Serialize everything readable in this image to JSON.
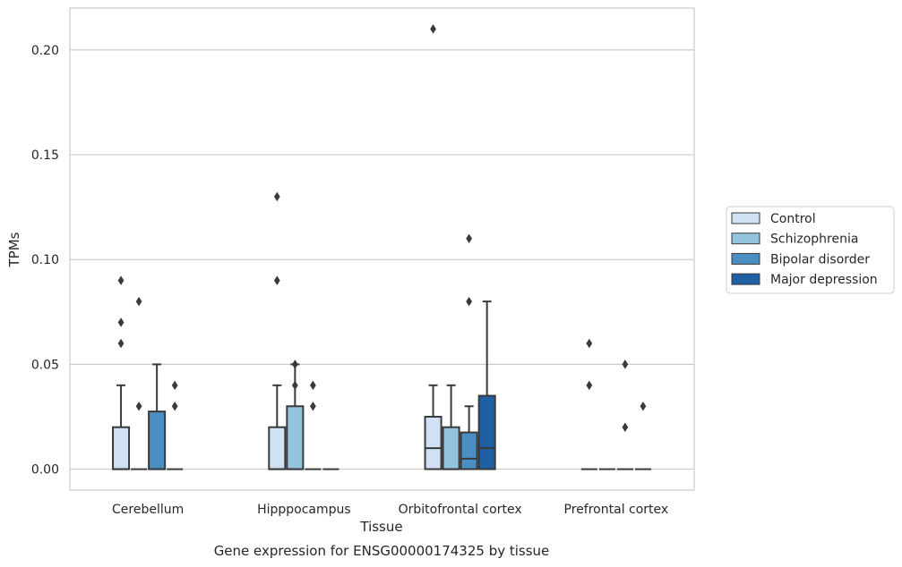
{
  "caption": "Gene expression for ENSG00000174325 by tissue",
  "chart_data": {
    "type": "box",
    "xlabel": "Tissue",
    "ylabel": "TPMs",
    "ylim": [
      -0.01,
      0.22
    ],
    "yticks": [
      "0.00",
      "0.05",
      "0.10",
      "0.15",
      "0.20"
    ],
    "grid": "horizontal",
    "legend_position": "right",
    "categories": [
      "Cerebellum",
      "Hipppocampus",
      "Orbitofrontal cortex",
      "Prefrontal cortex"
    ],
    "series": [
      {
        "name": "Control",
        "color": "#cfe1f2",
        "boxes": [
          {
            "q1": 0,
            "median": 0,
            "q3": 0.02,
            "whisker_low": 0,
            "whisker_high": 0.04,
            "outliers": [
              0.06,
              0.07,
              0.09
            ]
          },
          {
            "q1": 0,
            "median": 0,
            "q3": 0.02,
            "whisker_low": 0,
            "whisker_high": 0.04,
            "outliers": [
              0.09,
              0.13
            ]
          },
          {
            "q1": 0,
            "median": 0.01,
            "q3": 0.025,
            "whisker_low": 0,
            "whisker_high": 0.04,
            "outliers": [
              0.21
            ]
          },
          {
            "q1": 0,
            "median": 0,
            "q3": 0,
            "whisker_low": 0,
            "whisker_high": 0,
            "outliers": [
              0.04,
              0.06
            ]
          }
        ]
      },
      {
        "name": "Schizophrenia",
        "color": "#93c4de",
        "boxes": [
          {
            "q1": 0,
            "median": 0,
            "q3": 0,
            "whisker_low": 0,
            "whisker_high": 0,
            "outliers": [
              0.03,
              0.08
            ]
          },
          {
            "q1": 0,
            "median": 0,
            "q3": 0.03,
            "whisker_low": 0,
            "whisker_high": 0.05,
            "outliers": [
              0.04,
              0.05
            ]
          },
          {
            "q1": 0,
            "median": 0,
            "q3": 0.02,
            "whisker_low": 0,
            "whisker_high": 0.04,
            "outliers": []
          },
          {
            "q1": 0,
            "median": 0,
            "q3": 0,
            "whisker_low": 0,
            "whisker_high": 0,
            "outliers": []
          }
        ]
      },
      {
        "name": "Bipolar disorder",
        "color": "#4a8fc1",
        "boxes": [
          {
            "q1": 0,
            "median": 0,
            "q3": 0.0275,
            "whisker_low": 0,
            "whisker_high": 0.05,
            "outliers": []
          },
          {
            "q1": 0,
            "median": 0,
            "q3": 0,
            "whisker_low": 0,
            "whisker_high": 0,
            "outliers": [
              0.03,
              0.04
            ]
          },
          {
            "q1": 0,
            "median": 0.005,
            "q3": 0.0175,
            "whisker_low": 0,
            "whisker_high": 0.03,
            "outliers": [
              0.08,
              0.11
            ]
          },
          {
            "q1": 0,
            "median": 0,
            "q3": 0,
            "whisker_low": 0,
            "whisker_high": 0,
            "outliers": [
              0.02,
              0.05
            ]
          }
        ]
      },
      {
        "name": "Major depression",
        "color": "#1f5fa3",
        "boxes": [
          {
            "q1": 0,
            "median": 0,
            "q3": 0,
            "whisker_low": 0,
            "whisker_high": 0,
            "outliers": [
              0.03,
              0.04
            ]
          },
          {
            "q1": 0,
            "median": 0,
            "q3": 0,
            "whisker_low": 0,
            "whisker_high": 0,
            "outliers": []
          },
          {
            "q1": 0,
            "median": 0.01,
            "q3": 0.035,
            "whisker_low": 0,
            "whisker_high": 0.08,
            "outliers": []
          },
          {
            "q1": 0,
            "median": 0,
            "q3": 0,
            "whisker_low": 0,
            "whisker_high": 0,
            "outliers": [
              0.03
            ]
          }
        ]
      }
    ]
  }
}
